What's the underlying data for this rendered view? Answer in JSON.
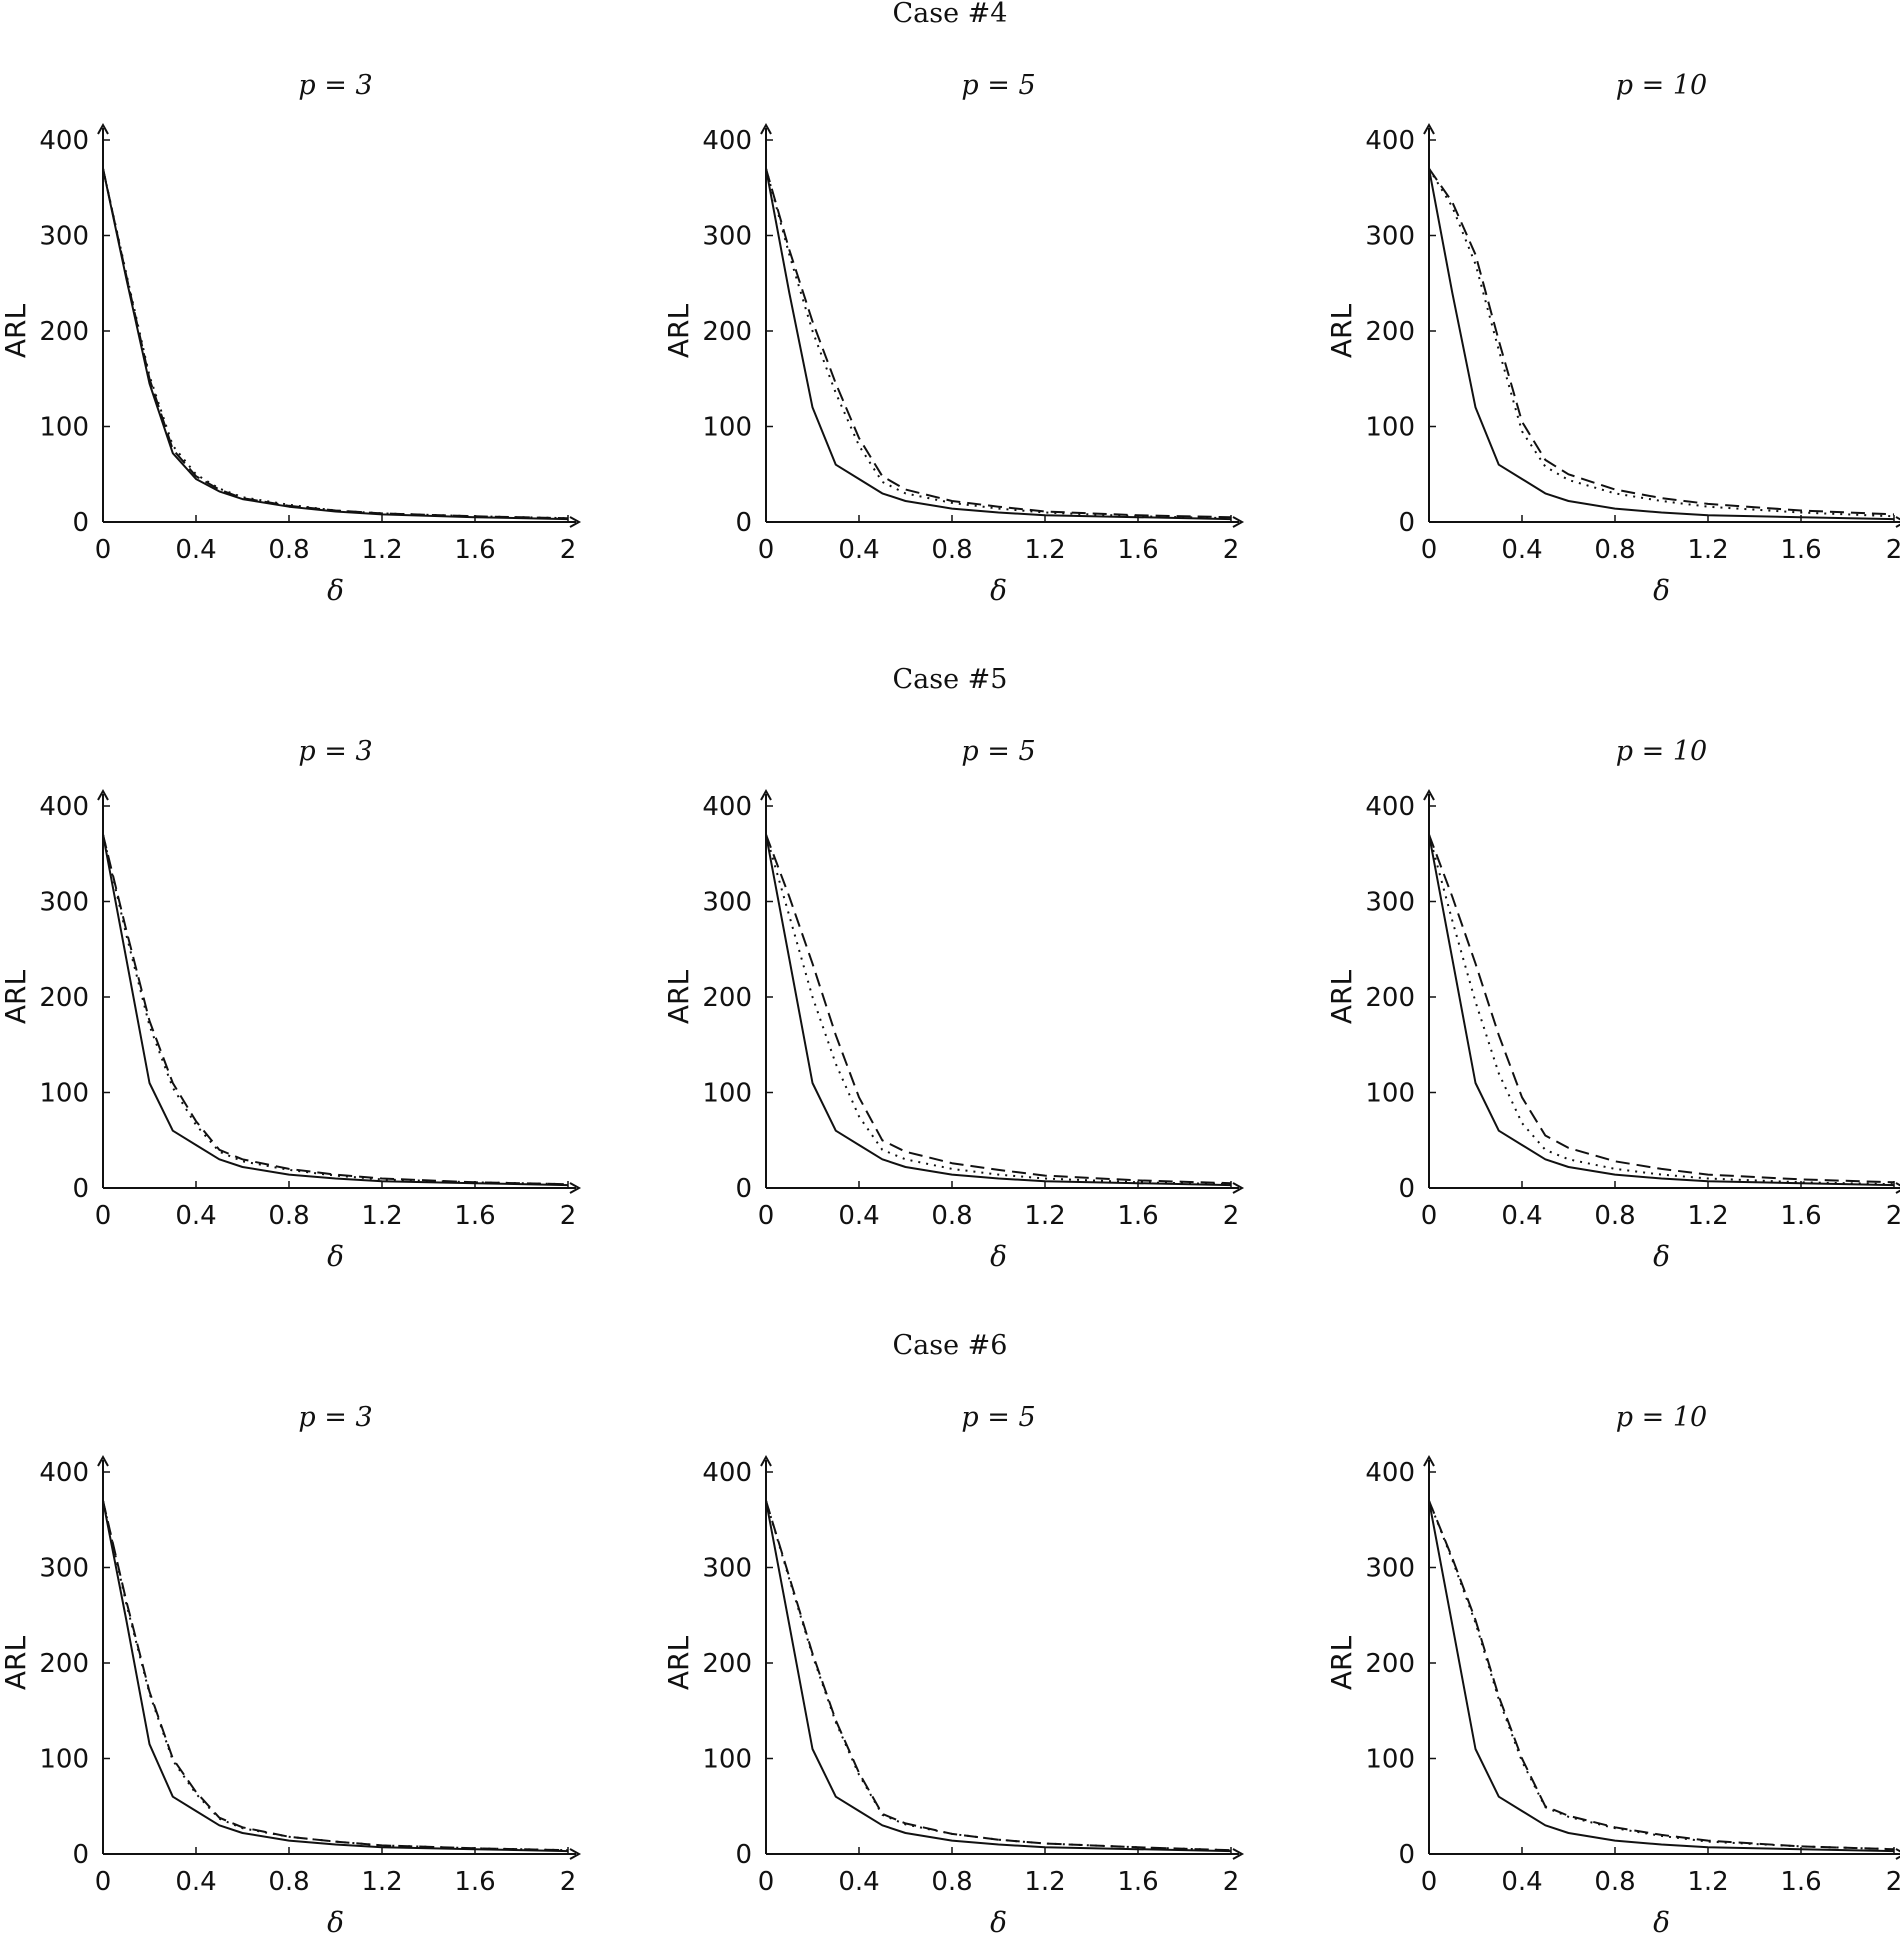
{
  "figure": {
    "x_ticks": [
      "0",
      "0.4",
      "0.8",
      "1.2",
      "1.6",
      "2"
    ],
    "y_ticks": [
      "0",
      "100",
      "200",
      "300",
      "400"
    ],
    "cases": [
      {
        "title": "Case #4",
        "panels": [
          {
            "title": "p = 3",
            "xlabel": "δ",
            "ylabel": "ARL"
          },
          {
            "title": "p = 5",
            "xlabel": "δ",
            "ylabel": "ARL"
          },
          {
            "title": "p = 10",
            "xlabel": "δ",
            "ylabel": "ARL"
          }
        ]
      },
      {
        "title": "Case #5",
        "panels": [
          {
            "title": "p = 3",
            "xlabel": "δ",
            "ylabel": "ARL"
          },
          {
            "title": "p = 5",
            "xlabel": "δ",
            "ylabel": "ARL"
          },
          {
            "title": "p = 10",
            "xlabel": "δ",
            "ylabel": "ARL"
          }
        ]
      },
      {
        "title": "Case #6",
        "panels": [
          {
            "title": "p = 3",
            "xlabel": "δ",
            "ylabel": "ARL"
          },
          {
            "title": "p = 5",
            "xlabel": "δ",
            "ylabel": "ARL"
          },
          {
            "title": "p = 10",
            "xlabel": "δ",
            "ylabel": "ARL"
          }
        ]
      }
    ]
  },
  "chart_data": [
    {
      "type": "line",
      "case": "Case #4",
      "title": "p = 3",
      "xlabel": "δ",
      "ylabel": "ARL",
      "xlim": [
        0,
        2
      ],
      "ylim": [
        0,
        400
      ],
      "grid": false,
      "x": [
        0,
        0.1,
        0.2,
        0.3,
        0.4,
        0.5,
        0.6,
        0.8,
        1.0,
        1.2,
        1.6,
        2.0
      ],
      "series": [
        {
          "style": "solid",
          "values": [
            370,
            255,
            145,
            72,
            45,
            32,
            24,
            16,
            11,
            8,
            5,
            3
          ]
        },
        {
          "style": "dashed",
          "values": [
            370,
            258,
            150,
            76,
            48,
            34,
            25,
            17,
            12,
            9,
            6,
            4
          ]
        },
        {
          "style": "dotted",
          "values": [
            370,
            260,
            153,
            80,
            50,
            35,
            26,
            18,
            12,
            9,
            6,
            4
          ]
        }
      ]
    },
    {
      "type": "line",
      "case": "Case #4",
      "title": "p = 5",
      "xlabel": "δ",
      "ylabel": "ARL",
      "xlim": [
        0,
        2
      ],
      "ylim": [
        0,
        400
      ],
      "grid": false,
      "x": [
        0,
        0.1,
        0.2,
        0.3,
        0.4,
        0.5,
        0.6,
        0.8,
        1.0,
        1.2,
        1.6,
        2.0
      ],
      "series": [
        {
          "style": "solid",
          "values": [
            370,
            240,
            120,
            60,
            45,
            30,
            22,
            14,
            10,
            7,
            5,
            3
          ]
        },
        {
          "style": "dashed",
          "values": [
            370,
            285,
            210,
            145,
            88,
            48,
            34,
            22,
            16,
            11,
            7,
            5
          ]
        },
        {
          "style": "dotted",
          "values": [
            370,
            280,
            200,
            135,
            80,
            42,
            30,
            20,
            14,
            10,
            6,
            4
          ]
        }
      ]
    },
    {
      "type": "line",
      "case": "Case #4",
      "title": "p = 10",
      "xlabel": "δ",
      "ylabel": "ARL",
      "xlim": [
        0,
        2
      ],
      "ylim": [
        0,
        400
      ],
      "grid": false,
      "x": [
        0,
        0.1,
        0.2,
        0.3,
        0.4,
        0.5,
        0.6,
        0.8,
        1.0,
        1.2,
        1.6,
        2.0
      ],
      "series": [
        {
          "style": "solid",
          "values": [
            370,
            240,
            120,
            60,
            45,
            30,
            22,
            14,
            10,
            7,
            5,
            3
          ]
        },
        {
          "style": "dashed",
          "values": [
            370,
            335,
            280,
            190,
            105,
            65,
            50,
            34,
            25,
            19,
            12,
            8
          ]
        },
        {
          "style": "dotted",
          "values": [
            370,
            330,
            270,
            180,
            95,
            58,
            44,
            30,
            22,
            16,
            10,
            6
          ]
        }
      ]
    },
    {
      "type": "line",
      "case": "Case #5",
      "title": "p = 3",
      "xlabel": "δ",
      "ylabel": "ARL",
      "xlim": [
        0,
        2
      ],
      "ylim": [
        0,
        400
      ],
      "grid": false,
      "x": [
        0,
        0.1,
        0.2,
        0.3,
        0.4,
        0.5,
        0.6,
        0.8,
        1.0,
        1.2,
        1.6,
        2.0
      ],
      "series": [
        {
          "style": "solid",
          "values": [
            370,
            240,
            110,
            60,
            45,
            30,
            22,
            14,
            10,
            7,
            5,
            3
          ]
        },
        {
          "style": "dashed",
          "values": [
            370,
            270,
            175,
            110,
            70,
            40,
            30,
            20,
            14,
            10,
            6,
            4
          ]
        },
        {
          "style": "dotted",
          "values": [
            370,
            265,
            170,
            105,
            66,
            38,
            28,
            19,
            13,
            9,
            6,
            4
          ]
        }
      ]
    },
    {
      "type": "line",
      "case": "Case #5",
      "title": "p = 5",
      "xlabel": "δ",
      "ylabel": "ARL",
      "xlim": [
        0,
        2
      ],
      "ylim": [
        0,
        400
      ],
      "grid": false,
      "x": [
        0,
        0.1,
        0.2,
        0.3,
        0.4,
        0.5,
        0.6,
        0.8,
        1.0,
        1.2,
        1.6,
        2.0
      ],
      "series": [
        {
          "style": "solid",
          "values": [
            370,
            240,
            110,
            60,
            45,
            30,
            22,
            14,
            10,
            7,
            5,
            3
          ]
        },
        {
          "style": "dashed",
          "values": [
            370,
            305,
            235,
            160,
            95,
            50,
            38,
            26,
            19,
            13,
            8,
            5
          ]
        },
        {
          "style": "dotted",
          "values": [
            370,
            285,
            200,
            130,
            75,
            40,
            30,
            20,
            14,
            10,
            6,
            4
          ]
        }
      ]
    },
    {
      "type": "line",
      "case": "Case #5",
      "title": "p = 10",
      "xlabel": "δ",
      "ylabel": "ARL",
      "xlim": [
        0,
        2
      ],
      "ylim": [
        0,
        400
      ],
      "grid": false,
      "x": [
        0,
        0.1,
        0.2,
        0.3,
        0.4,
        0.5,
        0.6,
        0.8,
        1.0,
        1.2,
        1.6,
        2.0
      ],
      "series": [
        {
          "style": "solid",
          "values": [
            370,
            240,
            110,
            60,
            45,
            30,
            22,
            14,
            10,
            7,
            5,
            3
          ]
        },
        {
          "style": "dashed",
          "values": [
            370,
            305,
            235,
            160,
            95,
            55,
            42,
            28,
            20,
            14,
            9,
            6
          ]
        },
        {
          "style": "dotted",
          "values": [
            370,
            280,
            195,
            120,
            68,
            40,
            30,
            20,
            14,
            10,
            6,
            4
          ]
        }
      ]
    },
    {
      "type": "line",
      "case": "Case #6",
      "title": "p = 3",
      "xlabel": "δ",
      "ylabel": "ARL",
      "xlim": [
        0,
        2
      ],
      "ylim": [
        0,
        400
      ],
      "grid": false,
      "x": [
        0,
        0.1,
        0.2,
        0.3,
        0.4,
        0.5,
        0.6,
        0.8,
        1.0,
        1.2,
        1.6,
        2.0
      ],
      "series": [
        {
          "style": "solid",
          "values": [
            370,
            245,
            115,
            60,
            45,
            30,
            22,
            14,
            10,
            7,
            5,
            3
          ]
        },
        {
          "style": "dashed",
          "values": [
            370,
            265,
            170,
            100,
            65,
            38,
            28,
            18,
            13,
            9,
            6,
            4
          ]
        },
        {
          "style": "dotted",
          "values": [
            370,
            262,
            168,
            98,
            63,
            37,
            27,
            18,
            13,
            9,
            6,
            4
          ]
        }
      ]
    },
    {
      "type": "line",
      "case": "Case #6",
      "title": "p = 5",
      "xlabel": "δ",
      "ylabel": "ARL",
      "xlim": [
        0,
        2
      ],
      "ylim": [
        0,
        400
      ],
      "grid": false,
      "x": [
        0,
        0.1,
        0.2,
        0.3,
        0.4,
        0.5,
        0.6,
        0.8,
        1.0,
        1.2,
        1.6,
        2.0
      ],
      "series": [
        {
          "style": "solid",
          "values": [
            370,
            240,
            110,
            60,
            45,
            30,
            22,
            14,
            10,
            7,
            5,
            3
          ]
        },
        {
          "style": "dashed",
          "values": [
            370,
            290,
            210,
            140,
            85,
            42,
            32,
            21,
            15,
            11,
            7,
            4
          ]
        },
        {
          "style": "dotted",
          "values": [
            370,
            288,
            208,
            138,
            83,
            41,
            31,
            21,
            15,
            11,
            7,
            4
          ]
        }
      ]
    },
    {
      "type": "line",
      "case": "Case #6",
      "title": "p = 10",
      "xlabel": "δ",
      "ylabel": "ARL",
      "xlim": [
        0,
        2
      ],
      "ylim": [
        0,
        400
      ],
      "grid": false,
      "x": [
        0,
        0.1,
        0.2,
        0.3,
        0.4,
        0.5,
        0.6,
        0.8,
        1.0,
        1.2,
        1.6,
        2.0
      ],
      "series": [
        {
          "style": "solid",
          "values": [
            370,
            240,
            110,
            60,
            45,
            30,
            22,
            14,
            10,
            7,
            5,
            3
          ]
        },
        {
          "style": "dashed",
          "values": [
            370,
            310,
            245,
            165,
            100,
            50,
            40,
            28,
            20,
            14,
            8,
            5
          ]
        },
        {
          "style": "dotted",
          "values": [
            370,
            308,
            242,
            162,
            97,
            49,
            39,
            27,
            19,
            13,
            8,
            5
          ]
        }
      ]
    }
  ]
}
